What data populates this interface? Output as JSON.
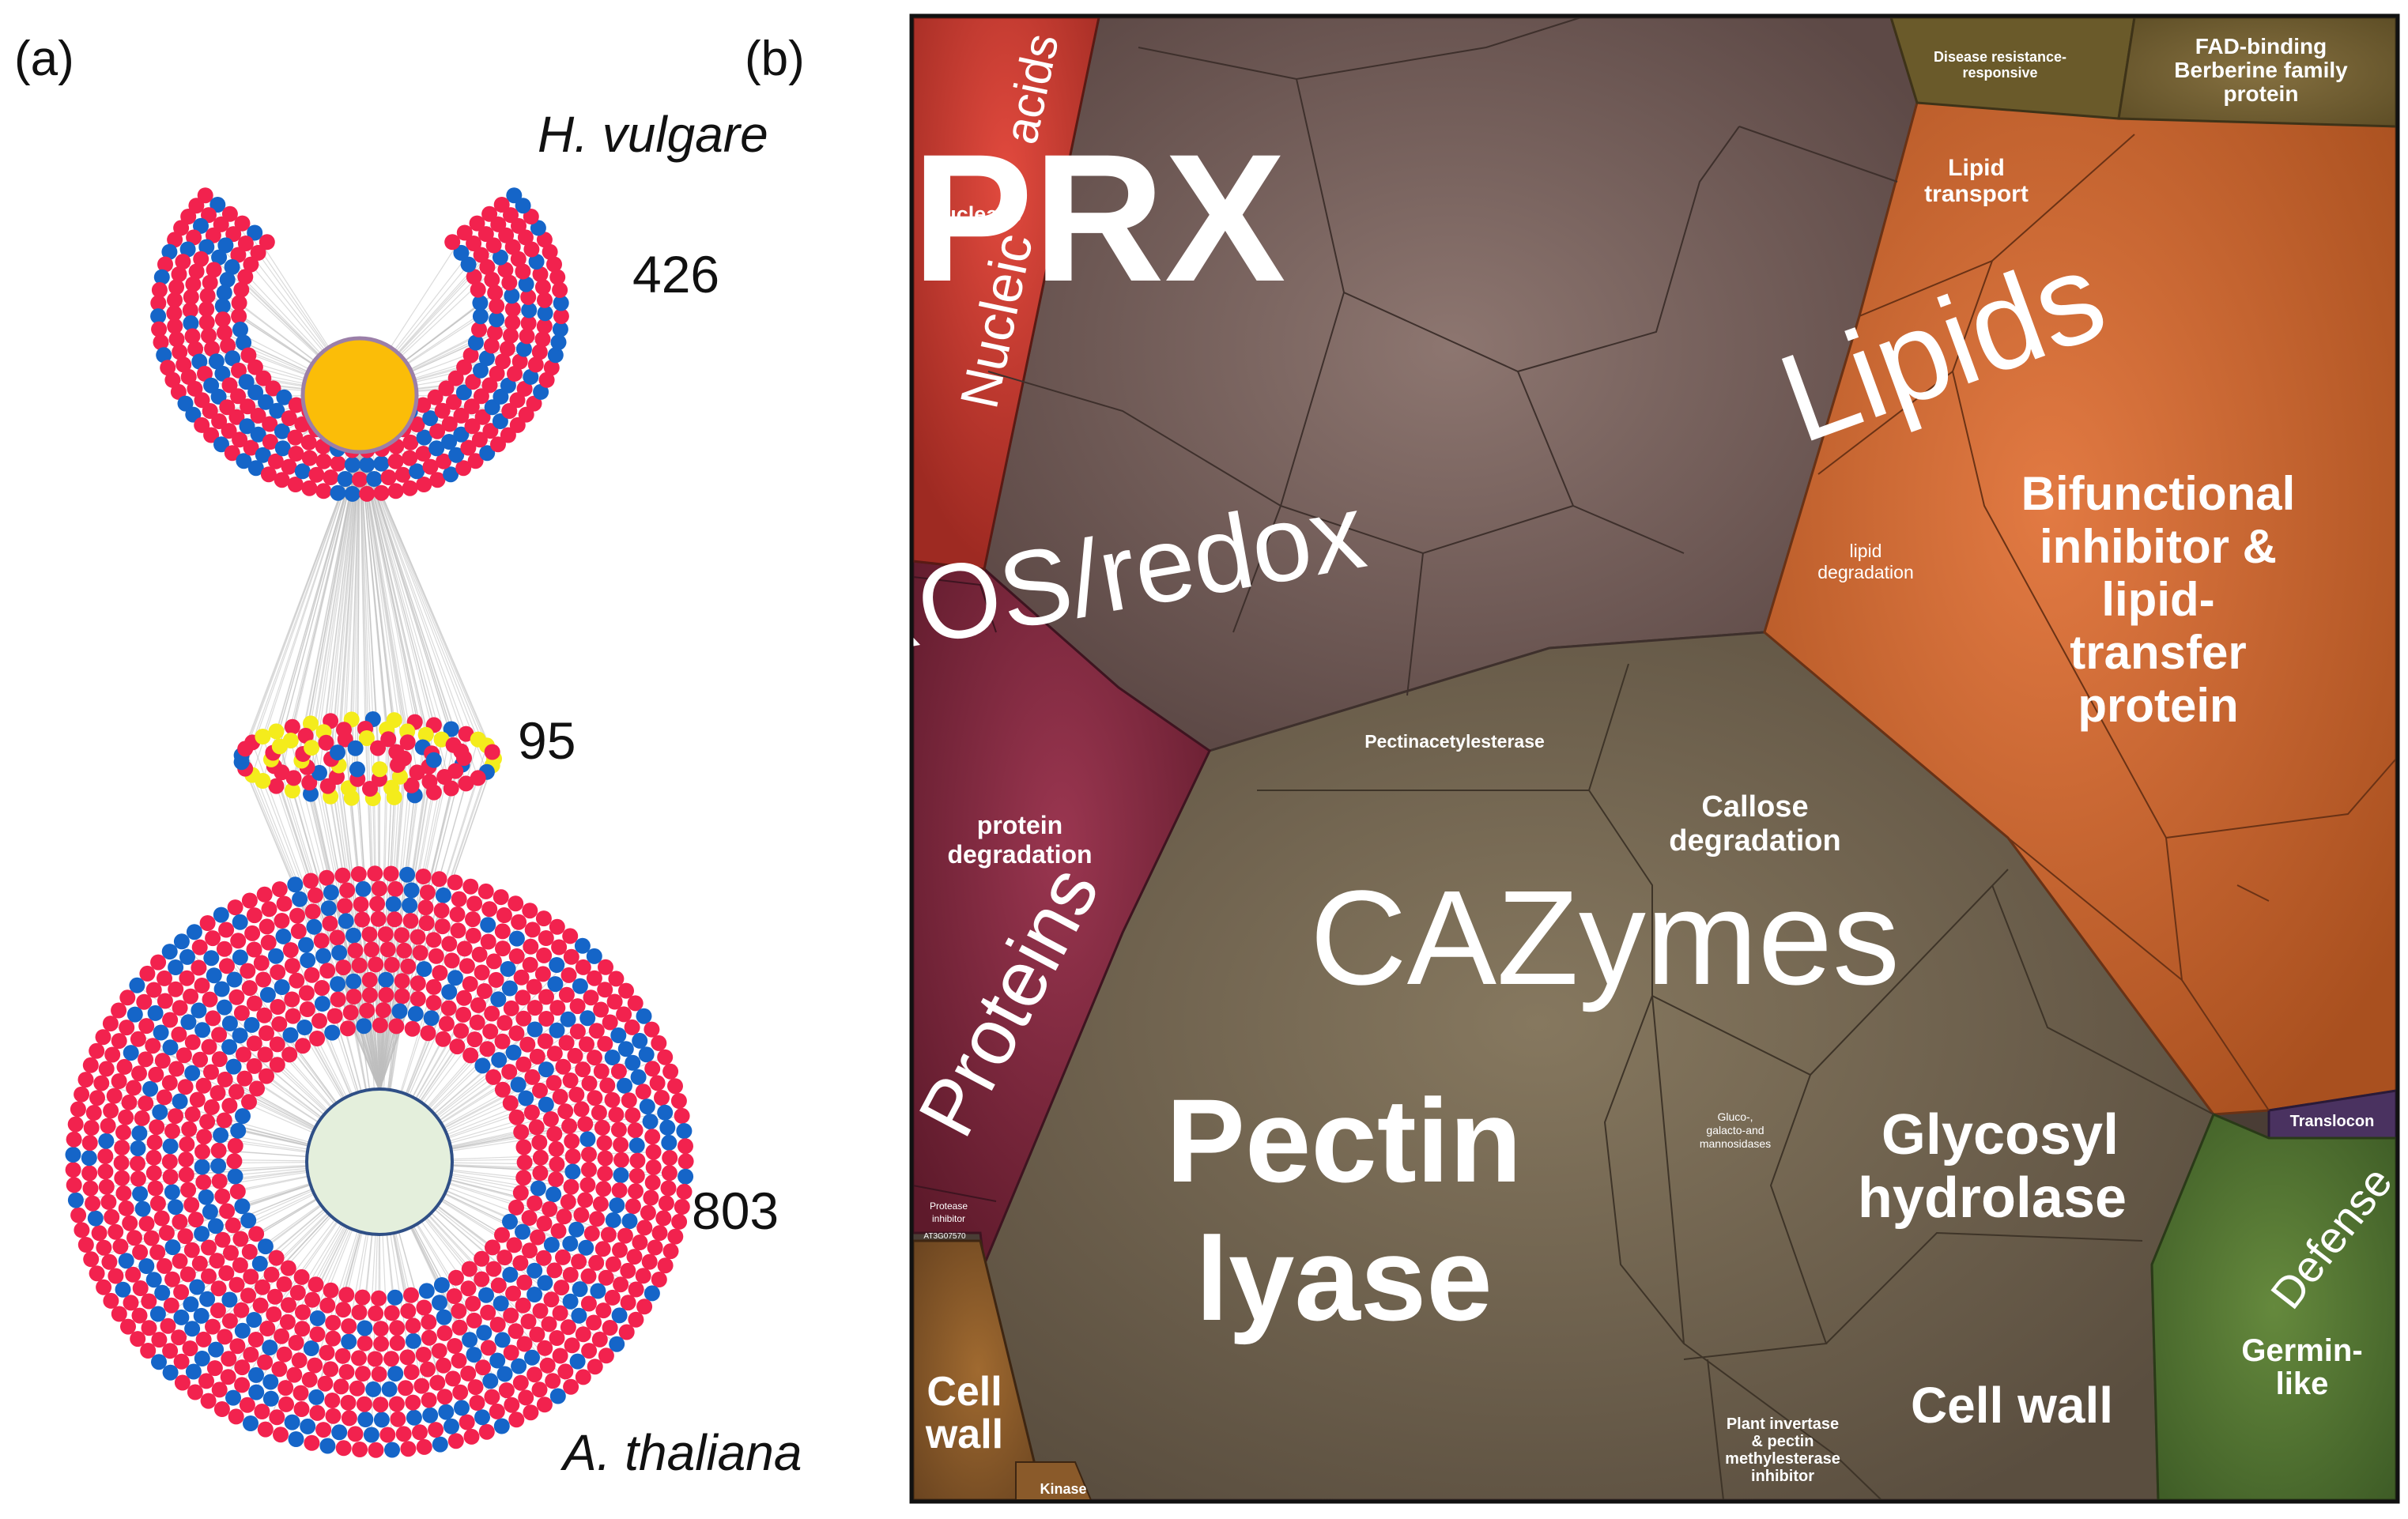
{
  "panel_a": {
    "label": "(a)",
    "top_species": "H. vulgare",
    "top_count": "426",
    "middle_count": "95",
    "bottom_count": "803",
    "bottom_species": "A. thaliana",
    "node_colors": {
      "red": "#f2224e",
      "blue": "#1565c8",
      "yellow": "#f4ec1c",
      "hub_top": "#fbbd08",
      "hub_bottom": "#e4efdc",
      "edge": "#bdbdbd"
    }
  },
  "panel_b": {
    "label": "(b)",
    "cells": {
      "prx": "PRX",
      "ros": "ROS/redox",
      "lipids": "Lipids",
      "bifunctional": [
        "Bifunctional",
        "inhibitor &",
        "lipid-",
        "transfer",
        "protein"
      ],
      "lipid_transport": [
        "Lipid",
        "transport"
      ],
      "lipid_degradation": [
        "lipid",
        "degradation"
      ],
      "disease": [
        "Disease resistance-",
        "responsive"
      ],
      "fad": [
        "FAD-binding",
        "Berberine family",
        "protein"
      ],
      "nucleic": "Nucleic",
      "acids": "acids",
      "nuclease": "Nuclease",
      "proteins": "Proteins",
      "protein_degradation": [
        "protein",
        "degradation"
      ],
      "protease_inhibitor": [
        "Protease",
        "inhibitor"
      ],
      "tiny_code": "AT3G07570",
      "pectinacetylesterase": "Pectinacetylesterase",
      "callose": [
        "Callose",
        "degradation"
      ],
      "cazymes": "CAZymes",
      "pectin_lyase": [
        "Pectin",
        "lyase"
      ],
      "gluco": [
        "Gluco-,",
        "galacto-and",
        "mannosidases"
      ],
      "glycosyl": [
        "Glycosyl",
        "hydrolase"
      ],
      "cell_wall_big": "Cell wall",
      "plant_invertase": [
        "Plant invertase",
        "& pectin",
        "methylesterase",
        "inhibitor"
      ],
      "cell_wall_small": [
        "Cell",
        "wall"
      ],
      "kinase": "Kinase",
      "translocon": "Translocon",
      "defense": "Defense",
      "germin": [
        "Germin-",
        "like"
      ]
    },
    "colors": {
      "redox": "#6e5752",
      "cazymes": "#6a5e4d",
      "lipids": "#bf5f2e",
      "proteins": "#7a2338",
      "nucleic": "#b8362d",
      "fad": "#6b5a2b",
      "defense": "#4a6a2e",
      "translocon": "#4a3260",
      "cellwall": "#7a5126"
    }
  }
}
